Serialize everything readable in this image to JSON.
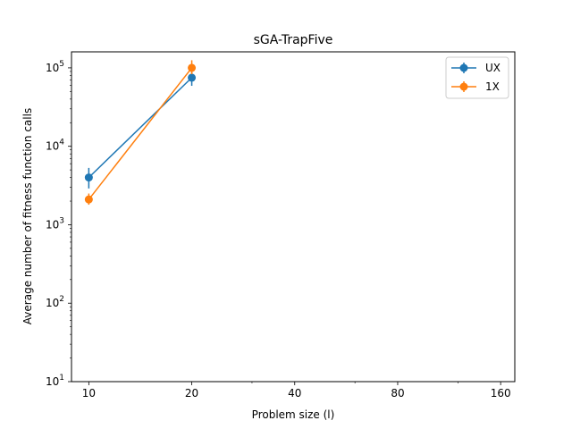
{
  "chart_data": {
    "type": "line",
    "title": "sGA-TrapFive",
    "xlabel": "Problem size (l)",
    "ylabel": "Average number of fitness function calls",
    "xscale": "log2",
    "yscale": "log10",
    "xlim": [
      8.9,
      176
    ],
    "ylim": [
      10,
      160000
    ],
    "xticks": [
      10,
      20,
      40,
      80,
      160
    ],
    "xtick_labels": [
      "10",
      "20",
      "40",
      "80",
      "160"
    ],
    "yticks": [
      10,
      100,
      1000,
      10000,
      100000
    ],
    "ytick_labels": [
      "10^1",
      "10^2",
      "10^3",
      "10^4",
      "10^5"
    ],
    "grid": false,
    "legend_position": "top-right",
    "series": [
      {
        "name": "UX",
        "color": "#1f77b4",
        "x": [
          10,
          20
        ],
        "y": [
          4000,
          75000
        ],
        "yerr_low": [
          2900,
          59000
        ],
        "yerr_high": [
          5300,
          90000
        ]
      },
      {
        "name": "1X",
        "color": "#ff7f0e",
        "x": [
          10,
          20
        ],
        "y": [
          2100,
          100000
        ],
        "yerr_low": [
          1800,
          83000
        ],
        "yerr_high": [
          2500,
          125000
        ]
      }
    ]
  }
}
